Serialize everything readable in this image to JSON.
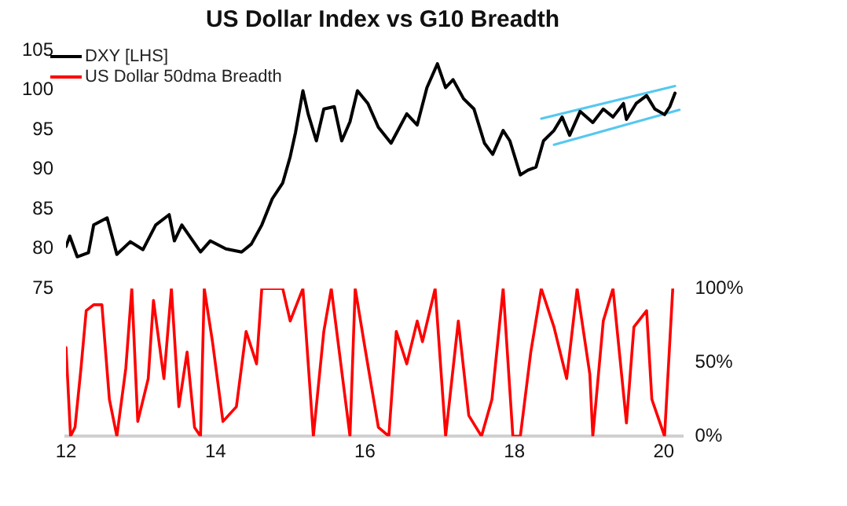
{
  "chart_data": {
    "type": "line",
    "title": "US Dollar Index vs G10 Breadth",
    "xlim": [
      2012,
      2020.25
    ],
    "xticks": [
      {
        "value": 2012,
        "label": "12"
      },
      {
        "value": 2014,
        "label": "14"
      },
      {
        "value": 2016,
        "label": "16"
      },
      {
        "value": 2018,
        "label": "18"
      },
      {
        "value": 2020,
        "label": "20"
      }
    ],
    "ylim": [
      56.4,
      105
    ],
    "yticks": [
      75,
      80,
      85,
      90,
      95,
      100,
      105
    ],
    "y2lim": [
      0,
      100
    ],
    "y2ticks": [
      {
        "value": 0,
        "label": "0%"
      },
      {
        "value": 50,
        "label": "50%"
      },
      {
        "value": 100,
        "label": "100%"
      }
    ],
    "legend": "top left",
    "grid": false,
    "series": [
      {
        "name": "DXY [LHS]",
        "color": "#000000",
        "axis": "y",
        "x": [
          2012,
          2012.05,
          2012.15,
          2012.3,
          2012.37,
          2012.55,
          2012.68,
          2012.86,
          2013.03,
          2013.2,
          2013.38,
          2013.45,
          2013.55,
          2013.8,
          2013.93,
          2014.14,
          2014.35,
          2014.48,
          2014.62,
          2014.76,
          2014.9,
          2015,
          2015.07,
          2015.17,
          2015.24,
          2015.35,
          2015.45,
          2015.59,
          2015.69,
          2015.8,
          2015.9,
          2016.04,
          2016.18,
          2016.35,
          2016.56,
          2016.7,
          2016.83,
          2016.97,
          2017.08,
          2017.18,
          2017.32,
          2017.46,
          2017.6,
          2017.71,
          2017.85,
          2017.94,
          2018.08,
          2018.18,
          2018.29,
          2018.39,
          2018.53,
          2018.64,
          2018.74,
          2018.88,
          2019.05,
          2019.19,
          2019.32,
          2019.46,
          2019.5,
          2019.63,
          2019.77,
          2019.88,
          2020.01,
          2020.08,
          2020.15
        ],
        "values": [
          80.3,
          81.6,
          79,
          79.5,
          83,
          83.9,
          79.3,
          80.9,
          79.9,
          83,
          84.3,
          81,
          83,
          79.6,
          81,
          80,
          79.6,
          80.6,
          83,
          86.3,
          88.3,
          91.6,
          94.6,
          99.9,
          97,
          93.6,
          97.6,
          97.9,
          93.6,
          96,
          99.9,
          98.3,
          95.3,
          93.3,
          97,
          95.6,
          100.3,
          103.3,
          100.3,
          101.3,
          98.9,
          97.6,
          93.3,
          91.9,
          94.9,
          93.6,
          89.3,
          89.9,
          90.3,
          93.6,
          94.9,
          96.6,
          94.3,
          97.3,
          95.9,
          97.6,
          96.6,
          98.3,
          96.3,
          98.3,
          99.3,
          97.6,
          96.9,
          97.9,
          99.6
        ]
      },
      {
        "color": "#55c8f0",
        "axis": "y",
        "x": [
          2018.36,
          2020.15
        ],
        "values": [
          96.4,
          100.5
        ]
      },
      {
        "color": "#55c8f0",
        "axis": "y",
        "x": [
          2018.53,
          2020.21
        ],
        "values": [
          93.1,
          97.5
        ]
      },
      {
        "name": "US Dollar 50dma Breadth",
        "color": "#ff0000",
        "axis": "y2",
        "x": [
          2012,
          2012.06,
          2012.12,
          2012.2,
          2012.27,
          2012.37,
          2012.48,
          2012.58,
          2012.68,
          2012.8,
          2012.88,
          2012.96,
          2013.1,
          2013.17,
          2013.31,
          2013.41,
          2013.51,
          2013.62,
          2013.72,
          2013.8,
          2013.85,
          2013.96,
          2014.1,
          2014.28,
          2014.41,
          2014.55,
          2014.62,
          2014.9,
          2015,
          2015.17,
          2015.31,
          2015.45,
          2015.55,
          2015.8,
          2015.87,
          2016,
          2016.18,
          2016.32,
          2016.42,
          2016.56,
          2016.7,
          2016.77,
          2016.94,
          2017.08,
          2017.25,
          2017.39,
          2017.56,
          2017.7,
          2017.85,
          2017.98,
          2018.08,
          2018.22,
          2018.36,
          2018.53,
          2018.7,
          2018.84,
          2019.01,
          2019.05,
          2019.19,
          2019.32,
          2019.5,
          2019.6,
          2019.77,
          2019.84,
          2020.01,
          2020.12
        ],
        "values": [
          60,
          0,
          6,
          46,
          85,
          89,
          89,
          25,
          0,
          46,
          100,
          10,
          39,
          92,
          39,
          100,
          20,
          57,
          6,
          0,
          100,
          64,
          10,
          20,
          71,
          49,
          100,
          100,
          78,
          100,
          0,
          71,
          100,
          0,
          100,
          60,
          6,
          0,
          71,
          49,
          78,
          64,
          100,
          0,
          78,
          14,
          0,
          25,
          100,
          0,
          0,
          57,
          100,
          74,
          39,
          100,
          42,
          0,
          78,
          100,
          9,
          74,
          85,
          25,
          0,
          100
        ]
      }
    ]
  }
}
